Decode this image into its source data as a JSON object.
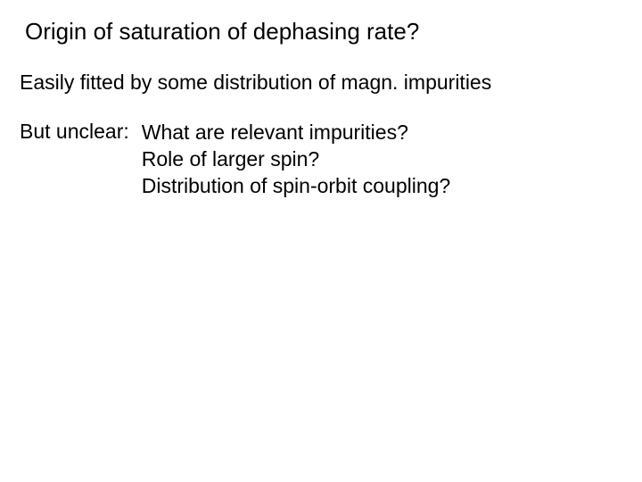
{
  "title": "Origin of saturation of dephasing rate?",
  "intro": "Easily fitted by some distribution of magn. impurities",
  "label": "But unclear:",
  "q1": "What are relevant impurities?",
  "q2": "Role of larger spin?",
  "q3": "Distribution of spin-orbit coupling?",
  "colors": {
    "background": "#ffffff",
    "text": "#000000"
  },
  "typography": {
    "title_fontsize": 26,
    "body_fontsize": 23,
    "font_family": "Arial",
    "font_weight": 400
  }
}
